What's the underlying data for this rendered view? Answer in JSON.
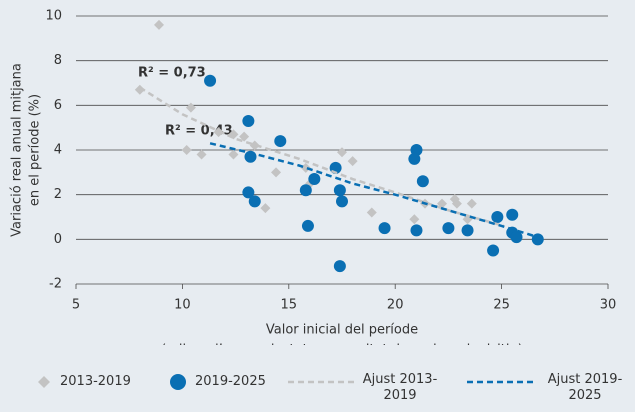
{
  "chart_data": {
    "type": "scatter",
    "x_label": [
      "Valor inicial del període",
      "(milers d’euros ajustats per paritat de poder adquisitiu)"
    ],
    "y_label": [
      "Variació real anual mitjana",
      "en el període (%)"
    ],
    "xlim": [
      5,
      30
    ],
    "xticks": [
      5,
      10,
      15,
      20,
      25,
      30
    ],
    "ylim": [
      -2,
      10
    ],
    "yticks": [
      -2,
      0,
      2,
      4,
      6,
      8,
      10
    ],
    "grid": true,
    "annotations": [
      {
        "text": "R² = 0,73",
        "color": "#c3c3c3"
      },
      {
        "text": "R² = 0,43",
        "color": "#0a6fb3"
      }
    ],
    "series": [
      {
        "name": "2013-2019",
        "color": "#c3c3c3",
        "marker": "diamond",
        "x": [
          8.9,
          8.0,
          10.4,
          10.2,
          10.9,
          11.7,
          12.4,
          12.9,
          12.4,
          13.4,
          13.9,
          14.4,
          15.8,
          16.0,
          17.5,
          18.0,
          18.9,
          20.9,
          22.2,
          22.8,
          22.9,
          23.6,
          23.4,
          21.4
        ],
        "values": [
          9.6,
          6.7,
          5.9,
          4.0,
          3.8,
          4.8,
          4.7,
          4.6,
          3.8,
          4.2,
          1.4,
          3.0,
          3.2,
          2.5,
          3.9,
          3.5,
          1.2,
          0.9,
          1.6,
          1.8,
          1.6,
          1.6,
          0.9,
          1.6
        ]
      },
      {
        "name": "2019-2025",
        "color": "#0a6fb3",
        "marker": "circle",
        "x": [
          11.3,
          13.1,
          13.2,
          13.1,
          13.4,
          14.6,
          15.8,
          15.9,
          16.2,
          17.2,
          17.4,
          17.5,
          17.4,
          19.5,
          21.0,
          20.9,
          21.3,
          21.0,
          22.5,
          23.4,
          24.6,
          24.8,
          25.5,
          25.5,
          25.7,
          26.7
        ],
        "values": [
          7.1,
          5.3,
          3.7,
          2.1,
          1.7,
          4.4,
          2.2,
          0.6,
          2.7,
          3.2,
          2.2,
          1.7,
          -1.2,
          0.5,
          4.0,
          3.6,
          2.6,
          0.4,
          0.5,
          0.4,
          -0.5,
          1.0,
          1.1,
          0.3,
          0.1,
          0.0
        ]
      },
      {
        "name": "Ajust 2013-2019",
        "color": "#c3c3c3",
        "marker": "dashed-line",
        "x": [
          8.0,
          10.0,
          12.5,
          15.5,
          18.0,
          20.0,
          22.5,
          25.1
        ],
        "values": [
          6.8,
          5.6,
          4.5,
          3.6,
          2.7,
          2.1,
          1.3,
          0.6
        ]
      },
      {
        "name": "Ajust 2019-2025",
        "color": "#0a6fb3",
        "marker": "dashed-line",
        "x": [
          11.3,
          13.5,
          15.5,
          18.0,
          20.0,
          22.5,
          25.0,
          26.7
        ],
        "values": [
          4.3,
          3.8,
          3.3,
          2.5,
          2.0,
          1.3,
          0.6,
          0.1
        ]
      }
    ]
  }
}
